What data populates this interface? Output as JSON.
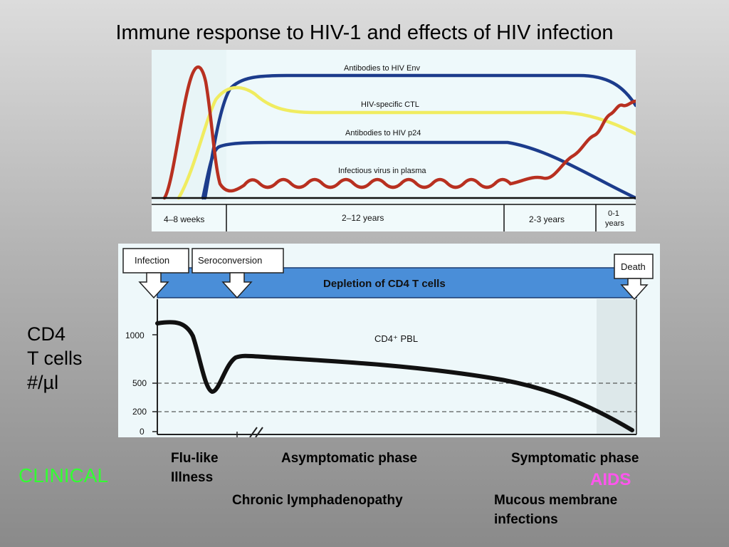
{
  "title": "Immune response to HIV-1 and effects of HIV infection",
  "top_chart": {
    "curves": [
      {
        "label": "Antibodies to HIV Env",
        "color": "#1c3c8c"
      },
      {
        "label": "HIV-specific CTL",
        "color": "#f0ec60"
      },
      {
        "label": "Antibodies to HIV p24",
        "color": "#1c3c8c"
      },
      {
        "label": "Infectious virus in plasma",
        "color": "#b83020"
      }
    ],
    "timeline": [
      "4–8 weeks",
      "2–12 years",
      "2-3 years",
      "0-1",
      "years"
    ]
  },
  "bottom_chart": {
    "events": [
      "Infection",
      "Seroconversion",
      "Death"
    ],
    "banner": "Depletion of CD4  T cells",
    "curve_label": "CD4⁺ PBL",
    "y_ticks": [
      "1000",
      "500",
      "200",
      "0"
    ]
  },
  "y_axis_label": [
    "CD4",
    "T cells",
    "#/µl"
  ],
  "clinical_label": "CLINICAL",
  "phases": {
    "flu_like_1": "Flu-like",
    "flu_like_2": "Illness",
    "asymptomatic": "Asymptomatic phase",
    "symptomatic": "Symptomatic phase",
    "aids": "AIDS",
    "lymphadenopathy": "Chronic lymphadenopathy",
    "mucous_1": "Mucous membrane",
    "mucous_2": "infections"
  },
  "colors": {
    "accent_blue": "#1c3c8c",
    "ctl_yellow": "#f0ec60",
    "virus_red": "#b83020",
    "banner_blue": "#4a8ed8",
    "clinical_green": "#33ff33",
    "aids_pink": "#ff55ee"
  }
}
